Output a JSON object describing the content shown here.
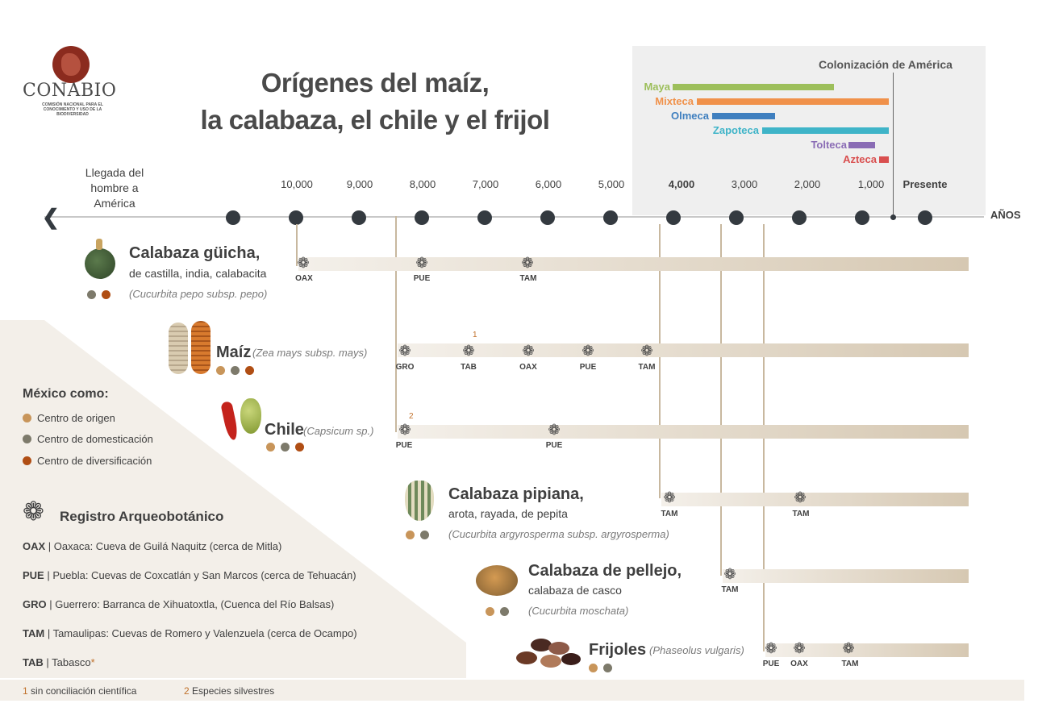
{
  "colors": {
    "origin": "#c8955a",
    "domestication": "#7d7a6b",
    "diversification": "#b04e14",
    "axis_dot": "#343a40",
    "track": "#d8cbb6"
  },
  "logo": {
    "name": "CONABIO",
    "subtitle": "COMISIÓN NACIONAL PARA EL CONOCIMIENTO Y USO DE LA BIODIVERSIDAD"
  },
  "title": {
    "line1": "Orígenes del maíz,",
    "line2": "la calabaza, el chile y el frijol"
  },
  "civilizations": {
    "colonization_label": "Colonización de América",
    "items": [
      {
        "name": "Maya",
        "color": "#9dbf5b"
      },
      {
        "name": "Mixteca",
        "color": "#f0914a"
      },
      {
        "name": "Olmeca",
        "color": "#3f7fbf"
      },
      {
        "name": "Zapoteca",
        "color": "#3fb4c8"
      },
      {
        "name": "Tolteca",
        "color": "#8a6cb5"
      },
      {
        "name": "Azteca",
        "color": "#d94f4f"
      }
    ]
  },
  "timeline": {
    "arrival_label": "Llegada del hombre a América",
    "unit_label": "AÑOS",
    "years": [
      "10,000",
      "9,000",
      "8,000",
      "7,000",
      "6,000",
      "5,000",
      "4,000",
      "3,000",
      "2,000",
      "1,000",
      "Presente"
    ]
  },
  "crops": {
    "guicha": {
      "name": "Calabaza güicha,",
      "sub": "de castilla, india, calabacita",
      "sci": "(Cucurbita pepo subsp. pepo)",
      "sites": [
        "OAX",
        "PUE",
        "TAM"
      ]
    },
    "maiz": {
      "name": "Maíz",
      "sci": "(Zea mays subsp. mays)",
      "note": "1",
      "sites": [
        "GRO",
        "TAB",
        "OAX",
        "PUE",
        "TAM"
      ]
    },
    "chile": {
      "name": "Chile",
      "sci": "(Capsicum sp.)",
      "note": "2",
      "sites": [
        "PUE",
        "PUE"
      ]
    },
    "pipiana": {
      "name": "Calabaza pipiana,",
      "sub": "arota, rayada, de pepita",
      "sci": "(Cucurbita argyrosperma subsp. argyrosperma)",
      "sites": [
        "TAM",
        "TAM"
      ]
    },
    "pellejo": {
      "name": "Calabaza de pellejo,",
      "sub": "calabaza de casco",
      "sci": "(Cucurbita moschata)",
      "sites": [
        "TAM"
      ]
    },
    "frijoles": {
      "name": "Frijoles",
      "sci": "(Phaseolus vulgaris)",
      "sites": [
        "PUE",
        "OAX",
        "TAM"
      ]
    }
  },
  "legend": {
    "mexico_title": "México como:",
    "origin": "Centro de origen",
    "domestication": "Centro de domesticación",
    "diversification": "Centro de diversificación",
    "registro_title": "Registro Arqueobotánico",
    "sites": [
      {
        "code": "OAX",
        "desc": "| Oaxaca: Cueva de Guilá Naquitz (cerca de Mitla)"
      },
      {
        "code": "PUE",
        "desc": "| Puebla: Cuevas de Coxcatlán y San Marcos (cerca de Tehuacán)"
      },
      {
        "code": "GRO",
        "desc": "| Guerrero: Barranca de Xihuatoxtla, (Cuenca del Río Balsas)"
      },
      {
        "code": "TAM",
        "desc": "| Tamaulipas: Cuevas de Romero y Valenzuela (cerca de Ocampo)"
      },
      {
        "code": "TAB",
        "desc": "| Tabasco"
      }
    ],
    "tab_star": "*"
  },
  "footnotes": {
    "n1": "1",
    "t1": "sin conciliación científica",
    "n2": "2",
    "t2": "Especies silvestres"
  }
}
